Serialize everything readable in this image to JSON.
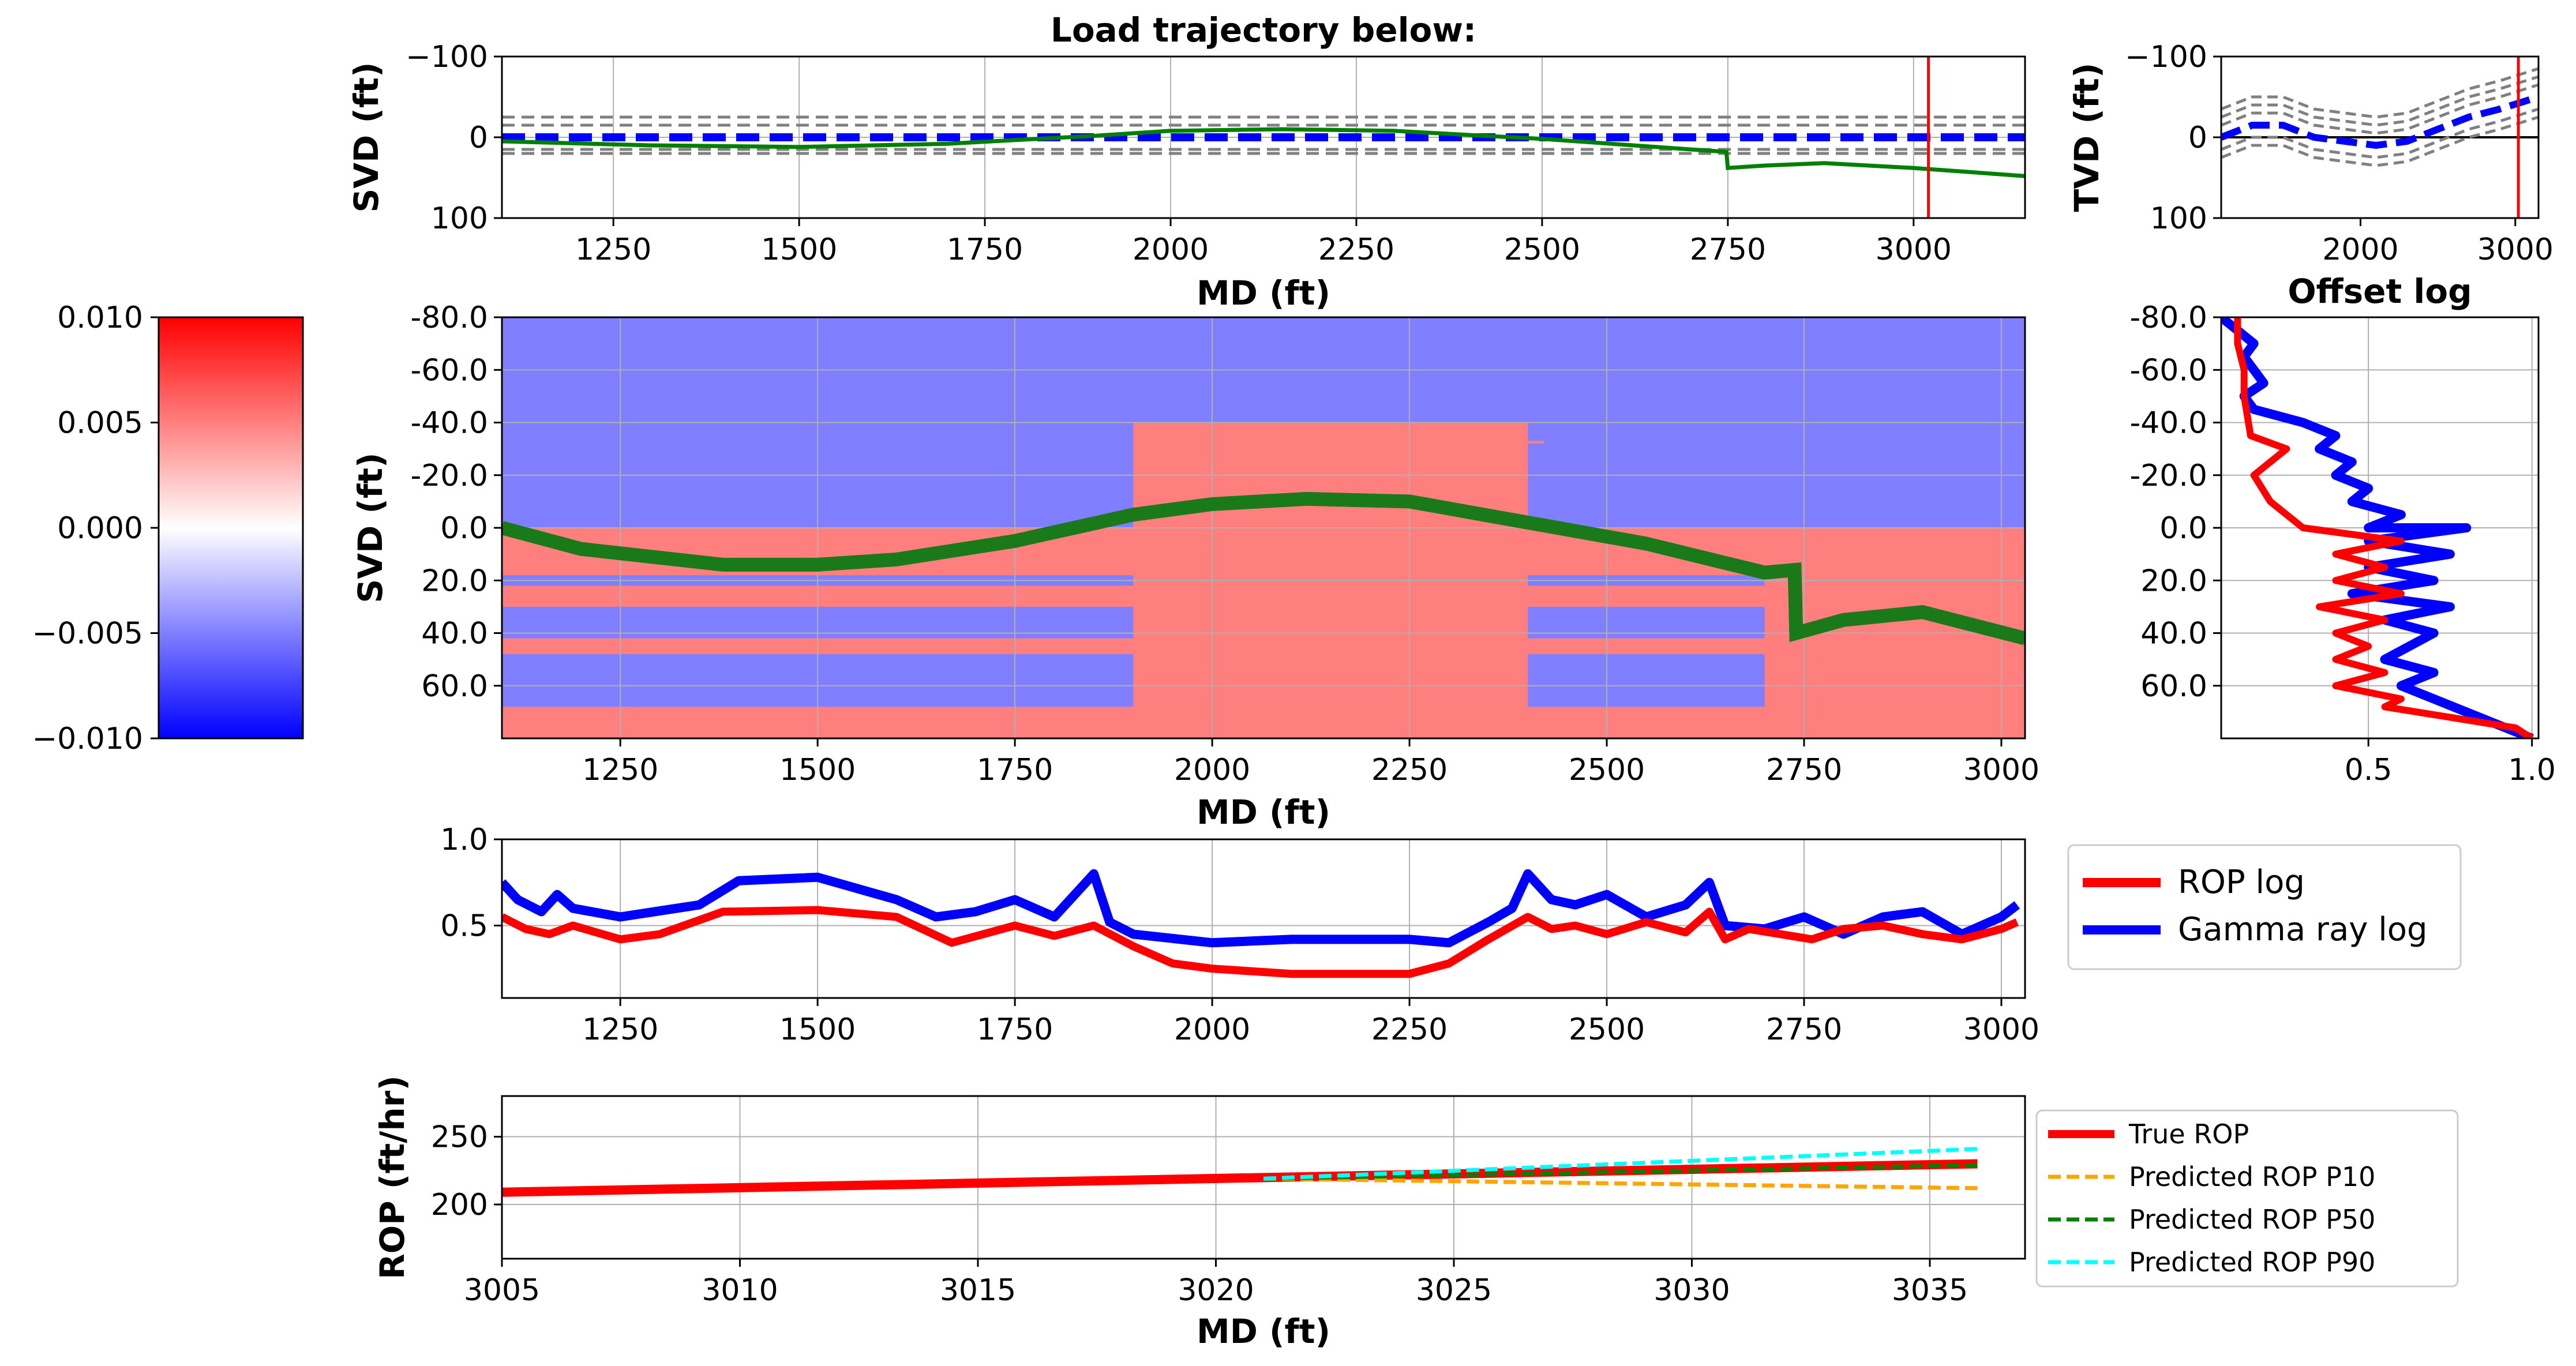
{
  "top_panel": {
    "title": "Load trajectory below:",
    "xlabel": "MD (ft)",
    "ylabel": "SVD (ft)",
    "xlim": [
      1100,
      3150
    ],
    "ylim": [
      100,
      -100
    ],
    "xticks": [
      1250,
      1500,
      1750,
      2000,
      2250,
      2500,
      2750,
      3000
    ],
    "yticks": [
      -100,
      0,
      100
    ],
    "ytick_labels": [
      "−100",
      "0",
      "100"
    ],
    "current_md": 3020,
    "boundaries_dashed": [
      -25,
      -15,
      15,
      20
    ],
    "well_path": {
      "x": [
        1100,
        1300,
        1500,
        1700,
        1900,
        2000,
        2150,
        2300,
        2500,
        2700,
        2748,
        2750,
        2800,
        2880,
        3000,
        3150
      ],
      "y": [
        5,
        10,
        12,
        8,
        -2,
        -8,
        -10,
        -8,
        2,
        15,
        18,
        38,
        35,
        32,
        38,
        48
      ]
    },
    "boundary_center": 0
  },
  "tvd_panel": {
    "ylabel": "TVD (ft)",
    "xlim": [
      1100,
      3150
    ],
    "ylim": [
      100,
      -100
    ],
    "xticks": [
      2000,
      3000
    ],
    "yticks": [
      -100,
      0,
      100
    ],
    "ytick_labels": [
      "−100",
      "0",
      "100"
    ],
    "current_md": 3020,
    "center": {
      "x": [
        1100,
        1300,
        1500,
        1700,
        1900,
        2100,
        2300,
        2500,
        2700,
        2900,
        3150
      ],
      "y": [
        0,
        -15,
        -15,
        0,
        5,
        10,
        5,
        -10,
        -25,
        -35,
        -50
      ]
    },
    "offsets": [
      -35,
      -25,
      -15,
      15,
      25
    ]
  },
  "colorbar": {
    "min": -0.01,
    "max": 0.01,
    "ticks": [
      "0.010",
      "0.005",
      "0.000",
      "−0.005",
      "−0.010"
    ],
    "tick_values": [
      0.01,
      0.005,
      0,
      -0.005,
      -0.01
    ],
    "colors": [
      "#0000ff",
      "#ffffff",
      "#ff0000"
    ]
  },
  "main_panel": {
    "xlabel": "MD (ft)",
    "ylabel": "SVD (ft)",
    "xlim": [
      1100,
      3030
    ],
    "ylim": [
      -80,
      80
    ],
    "xticks": [
      1250,
      1500,
      1750,
      2000,
      2250,
      2500,
      2750,
      3000
    ],
    "yticks": [
      "-80.0",
      "-60.0",
      "-40.0",
      "-20.0",
      "0.0",
      "20.0",
      "40.0",
      "60.0"
    ],
    "ytick_values": [
      -80,
      -60,
      -40,
      -20,
      0,
      20,
      40,
      60
    ],
    "background_color": "#7f7fff",
    "layer_color": "#ff7f7f",
    "trajectory": {
      "x": [
        1100,
        1200,
        1380,
        1500,
        1600,
        1750,
        1900,
        2000,
        2120,
        2250,
        2400,
        2550,
        2700,
        2738,
        2740,
        2800,
        2900,
        3030
      ],
      "y": [
        0,
        8,
        14,
        14,
        12,
        5,
        -5,
        -9,
        -11,
        -10,
        -2,
        6,
        17,
        16,
        40,
        35,
        32,
        42
      ]
    },
    "trajectory_color": "#1a7a1a"
  },
  "offset_panel": {
    "title": "Offset log",
    "xlim": [
      0.05,
      1.02
    ],
    "ylim": [
      -80,
      80
    ],
    "xticks": [
      "0.5",
      "1.0"
    ],
    "xtick_values": [
      0.5,
      1.0
    ],
    "yticks": [
      "-80.0",
      "-60.0",
      "-40.0",
      "-20.0",
      "0.0",
      "20.0",
      "40.0",
      "60.0"
    ],
    "ytick_values": [
      -80,
      -60,
      -40,
      -20,
      0,
      20,
      40,
      60
    ],
    "rop_log": {
      "x": [
        0.1,
        0.1,
        0.12,
        0.12,
        0.14,
        0.25,
        0.2,
        0.15,
        0.2,
        0.3,
        0.6,
        0.4,
        0.55,
        0.4,
        0.6,
        0.35,
        0.55,
        0.4,
        0.5,
        0.4,
        0.55,
        0.4,
        0.6,
        0.55,
        0.75,
        0.95,
        1.0
      ],
      "y": [
        -80,
        -70,
        -60,
        -50,
        -35,
        -30,
        -25,
        -20,
        -10,
        0,
        5,
        10,
        15,
        20,
        25,
        30,
        35,
        40,
        45,
        50,
        55,
        60,
        65,
        68,
        72,
        76,
        80
      ]
    },
    "gamma_log": {
      "x": [
        0.05,
        0.1,
        0.15,
        0.12,
        0.18,
        0.12,
        0.15,
        0.3,
        0.4,
        0.35,
        0.45,
        0.4,
        0.5,
        0.45,
        0.6,
        0.5,
        0.8,
        0.5,
        0.75,
        0.5,
        0.7,
        0.45,
        0.75,
        0.55,
        0.7,
        0.55,
        0.7,
        0.6,
        0.8,
        1.0
      ],
      "y": [
        -80,
        -75,
        -70,
        -65,
        -55,
        -50,
        -45,
        -40,
        -35,
        -30,
        -25,
        -20,
        -15,
        -10,
        -5,
        0,
        0,
        5,
        10,
        15,
        20,
        25,
        30,
        35,
        40,
        50,
        55,
        60,
        70,
        80
      ]
    }
  },
  "logs_panel": {
    "xlim": [
      1100,
      3030
    ],
    "ylim": [
      0.08,
      1.0
    ],
    "xticks": [
      1250,
      1500,
      1750,
      2000,
      2250,
      2500,
      2750,
      3000
    ],
    "yticks": [
      "0.5",
      "1.0"
    ],
    "ytick_values": [
      0.5,
      1.0
    ],
    "legend": [
      "ROP log",
      "Gamma ray log"
    ],
    "rop_log": {
      "x": [
        1100,
        1130,
        1160,
        1190,
        1250,
        1300,
        1380,
        1500,
        1600,
        1670,
        1750,
        1800,
        1850,
        1900,
        1950,
        2000,
        2100,
        2250,
        2300,
        2350,
        2400,
        2430,
        2460,
        2500,
        2550,
        2600,
        2630,
        2650,
        2680,
        2720,
        2760,
        2800,
        2850,
        2900,
        2950,
        3000,
        3020
      ],
      "y": [
        0.55,
        0.48,
        0.45,
        0.5,
        0.42,
        0.45,
        0.58,
        0.59,
        0.55,
        0.4,
        0.5,
        0.44,
        0.5,
        0.38,
        0.28,
        0.25,
        0.22,
        0.22,
        0.28,
        0.42,
        0.55,
        0.48,
        0.5,
        0.45,
        0.52,
        0.46,
        0.58,
        0.42,
        0.48,
        0.45,
        0.42,
        0.48,
        0.5,
        0.45,
        0.42,
        0.48,
        0.52
      ]
    },
    "gamma_log": {
      "x": [
        1100,
        1120,
        1150,
        1170,
        1190,
        1250,
        1350,
        1400,
        1500,
        1600,
        1650,
        1700,
        1750,
        1800,
        1850,
        1870,
        1900,
        2000,
        2100,
        2250,
        2300,
        2350,
        2380,
        2400,
        2430,
        2460,
        2500,
        2550,
        2600,
        2630,
        2650,
        2700,
        2750,
        2800,
        2850,
        2900,
        2950,
        3000,
        3020
      ],
      "y": [
        0.75,
        0.65,
        0.58,
        0.68,
        0.6,
        0.55,
        0.62,
        0.76,
        0.78,
        0.65,
        0.55,
        0.58,
        0.65,
        0.55,
        0.8,
        0.52,
        0.45,
        0.4,
        0.42,
        0.42,
        0.4,
        0.52,
        0.6,
        0.8,
        0.65,
        0.62,
        0.68,
        0.55,
        0.62,
        0.75,
        0.5,
        0.48,
        0.55,
        0.45,
        0.55,
        0.58,
        0.45,
        0.55,
        0.62
      ]
    }
  },
  "rop_panel": {
    "xlabel": "MD (ft)",
    "ylabel": "ROP (ft/hr)",
    "xlim": [
      3005,
      3037
    ],
    "ylim": [
      160,
      280
    ],
    "xticks": [
      3005,
      3010,
      3015,
      3020,
      3025,
      3030,
      3035
    ],
    "yticks": [
      200,
      250
    ],
    "legend": [
      "True ROP",
      "Predicted ROP P10",
      "Predicted ROP P50",
      "Predicted ROP P90"
    ],
    "true_rop": {
      "x": [
        3005,
        3036
      ],
      "y": [
        209,
        230
      ]
    },
    "p10": {
      "x": [
        3021,
        3036
      ],
      "y": [
        219,
        212
      ]
    },
    "p50": {
      "x": [
        3021,
        3036
      ],
      "y": [
        219,
        229
      ]
    },
    "p90": {
      "x": [
        3021,
        3036
      ],
      "y": [
        219,
        241
      ]
    }
  },
  "colors": {
    "rop": "#ff0000",
    "gamma": "#0000ff",
    "well": "#008000",
    "dashed_boundary": "#808080",
    "blue_dashed": "#0000ff",
    "p10": "#ffa500",
    "p50": "#008000",
    "p90": "#00ffff",
    "marker": "#ff0000"
  }
}
